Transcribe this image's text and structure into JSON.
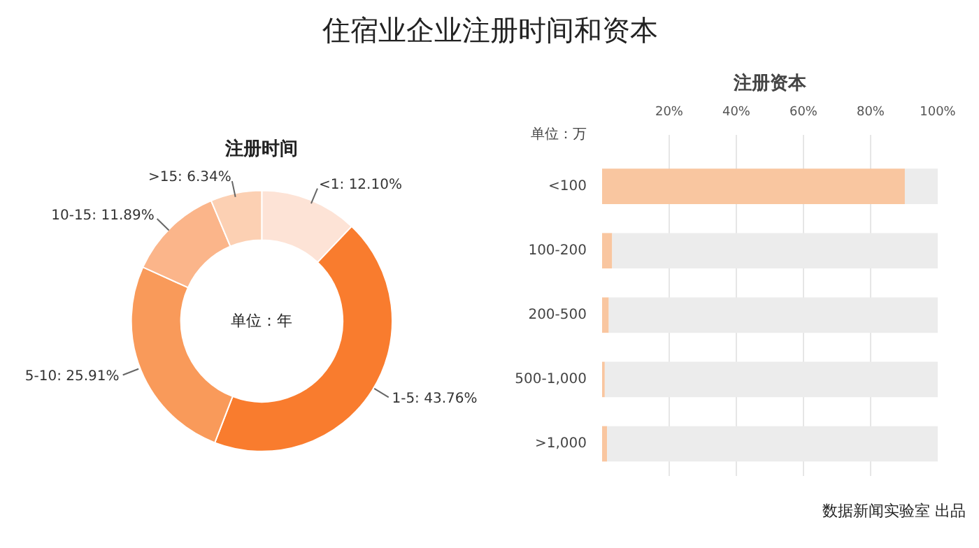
{
  "chart_data": [
    {
      "type": "donut",
      "title": "住宿业企业注册时间和资本",
      "subtitle": "注册时间",
      "categories": [
        "<1",
        "1-5",
        "5-10",
        "10-15",
        ">15"
      ],
      "values": [
        12.1,
        43.76,
        25.91,
        11.89,
        6.34
      ],
      "colors": [
        "#fde3d6",
        "#f97c2e",
        "#f99a5a",
        "#fbb58a",
        "#fcd0b3"
      ],
      "value_labels": [
        "12.10%",
        "43.76%",
        "25.91%",
        "11.89%",
        "6.34%"
      ],
      "annotations": [
        "单位：年"
      ]
    },
    {
      "type": "bar",
      "orientation": "horizontal",
      "stacked": true,
      "subtitle": "注册资本",
      "categories": [
        "<100",
        "100-200",
        "200-500",
        "500-1,000",
        ">1,000"
      ],
      "series": [
        {
          "color": "#f9c6a0",
          "values": [
            90.2,
            3,
            2,
            0.8,
            1.5
          ]
        },
        {
          "color": "#ececec",
          "values": [
            9.8,
            97,
            98,
            99.2,
            98.5
          ]
        }
      ],
      "xlim": [
        0,
        100
      ],
      "xticks": [
        {
          "value": 20,
          "label": "20%"
        },
        {
          "value": 40,
          "label": "40%"
        },
        {
          "value": 60,
          "label": "60%"
        },
        {
          "value": 80,
          "label": "80%"
        },
        {
          "value": 100,
          "label": "100%"
        }
      ],
      "grid": "x",
      "annotations": [
        "单位：万",
        "数据新闻实验室 出品"
      ]
    }
  ]
}
